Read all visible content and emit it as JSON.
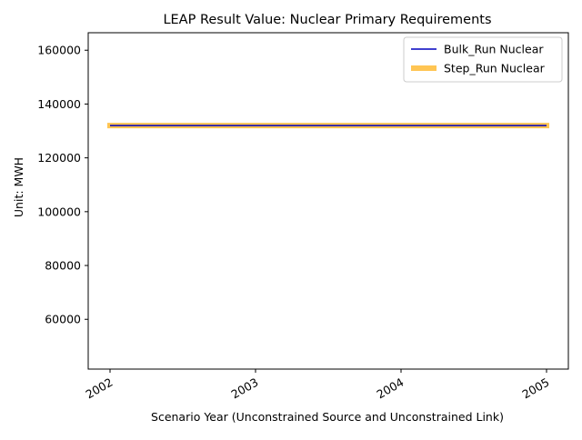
{
  "chart_data": {
    "type": "line",
    "title": "LEAP Result Value: Nuclear Primary Requirements",
    "xlabel": "Scenario Year (Unconstrained Source and Unconstrained Link)",
    "ylabel": "Unit: MWH",
    "x": [
      2002,
      2003,
      2004,
      2005
    ],
    "x_tick_labels": [
      "2002",
      "2003",
      "2004",
      "2005"
    ],
    "xlim": [
      2001.85,
      2005.15
    ],
    "ylim": [
      41500,
      166500
    ],
    "y_ticks": [
      60000,
      80000,
      100000,
      120000,
      140000,
      160000
    ],
    "y_tick_labels": [
      "60000",
      "80000",
      "100000",
      "120000",
      "140000",
      "160000"
    ],
    "grid": false,
    "legend_position": "upper right",
    "series": [
      {
        "name": "Step_Run Nuclear",
        "values": [
          132000,
          132000,
          132000,
          132000
        ],
        "color": "#ffbf40",
        "style": "thick"
      },
      {
        "name": "Bulk_Run Nuclear",
        "values": [
          132000,
          132000,
          132000,
          132000
        ],
        "color": "#0000bf",
        "style": "thin"
      }
    ],
    "legend_entries": [
      {
        "name": "Bulk_Run Nuclear",
        "color": "#0000bf",
        "style": "thin"
      },
      {
        "name": "Step_Run Nuclear",
        "color": "#ffbf40",
        "style": "thick"
      }
    ]
  }
}
